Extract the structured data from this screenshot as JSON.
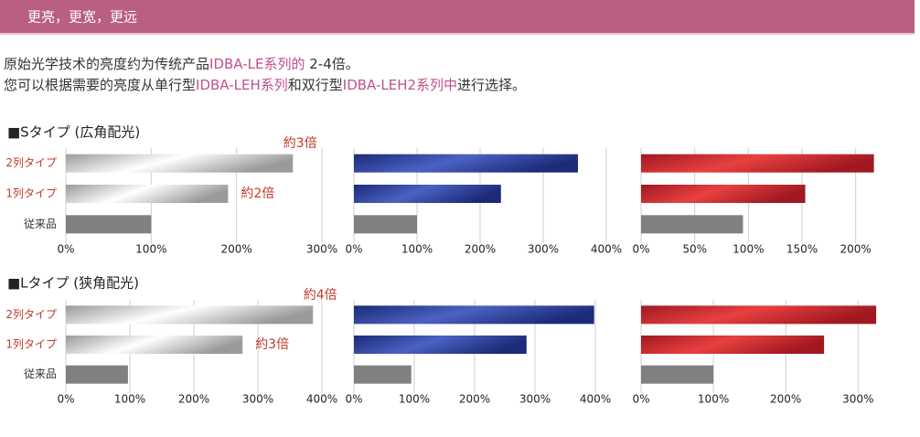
{
  "header": {
    "title": "更亮，更宽，更远"
  },
  "description": {
    "lines": [
      [
        {
          "text": "原始光学技术的亮度约为传统产品",
          "color": "#333333"
        },
        {
          "text": "IDBA-LE系列的",
          "color": "#c0508a"
        },
        {
          "text": " 2-4倍。",
          "color": "#333333"
        }
      ],
      [
        {
          "text": "您可以根据需要的亮度从单行型",
          "color": "#333333"
        },
        {
          "text": "IDBA-LEH系列",
          "color": "#c0508a"
        },
        {
          "text": "和双行型",
          "color": "#333333"
        },
        {
          "text": "IDBA-LEH2系列中",
          "color": "#c0508a"
        },
        {
          "text": "进行选择。",
          "color": "#333333"
        }
      ]
    ]
  },
  "sections": [
    "■Sタイプ (広角配光)",
    "■Lタイプ (狭角配光)"
  ],
  "chart_data": [
    {
      "type": "bar",
      "orientation": "horizontal",
      "categories": [
        "2列タイプ",
        "1列タイプ",
        "従来品"
      ],
      "category_colors": [
        "#c0392b",
        "#c0392b",
        "#333333"
      ],
      "values": [
        266,
        190,
        100
      ],
      "colors": [
        "#9a9a9a",
        "#9a9a9a",
        "#808080"
      ],
      "highlight": "#ffffff",
      "annotations": [
        "約3倍",
        "約2倍"
      ],
      "xlim": [
        0,
        300
      ],
      "xticks": [
        {
          "value": 0,
          "label": "0%"
        },
        {
          "value": 100,
          "label": "100%"
        },
        {
          "value": 200,
          "label": "200%"
        },
        {
          "value": 300,
          "label": "300%"
        }
      ],
      "grid": true
    },
    {
      "type": "bar",
      "orientation": "horizontal",
      "values": [
        355,
        233,
        100
      ],
      "colors": [
        "#1c2a78",
        "#1c2a78",
        "#808080"
      ],
      "highlight": "#4a62c2",
      "xlim": [
        0,
        400
      ],
      "xticks": [
        {
          "value": 0,
          "label": "0%"
        },
        {
          "value": 100,
          "label": "100%"
        },
        {
          "value": 200,
          "label": "200%"
        },
        {
          "value": 300,
          "label": "300%"
        },
        {
          "value": 400,
          "label": "400%"
        }
      ],
      "grid": true
    },
    {
      "type": "bar",
      "orientation": "horizontal",
      "values": [
        217,
        153,
        95
      ],
      "colors": [
        "#a01820",
        "#a01820",
        "#808080"
      ],
      "highlight": "#e84040",
      "xlim": [
        0,
        225
      ],
      "xticks": [
        {
          "value": 0,
          "label": "0%"
        },
        {
          "value": 50,
          "label": "50%"
        },
        {
          "value": 100,
          "label": "100%"
        },
        {
          "value": 150,
          "label": "150%"
        },
        {
          "value": 200,
          "label": "200%"
        }
      ],
      "grid": true
    },
    {
      "type": "bar",
      "orientation": "horizontal",
      "categories": [
        "2列タイプ",
        "1列タイプ",
        "従来品"
      ],
      "category_colors": [
        "#c0392b",
        "#c0392b",
        "#333333"
      ],
      "values": [
        386,
        276,
        97
      ],
      "colors": [
        "#9a9a9a",
        "#9a9a9a",
        "#808080"
      ],
      "highlight": "#ffffff",
      "annotations": [
        "約4倍",
        "約3倍"
      ],
      "xlim": [
        0,
        400
      ],
      "xticks": [
        {
          "value": 0,
          "label": "0%"
        },
        {
          "value": 100,
          "label": "100%"
        },
        {
          "value": 200,
          "label": "200%"
        },
        {
          "value": 300,
          "label": "300%"
        },
        {
          "value": 400,
          "label": "400%"
        }
      ],
      "grid": true
    },
    {
      "type": "bar",
      "orientation": "horizontal",
      "values": [
        398,
        286,
        95
      ],
      "colors": [
        "#1c2a78",
        "#1c2a78",
        "#808080"
      ],
      "highlight": "#4a62c2",
      "xlim": [
        0,
        400
      ],
      "xticks": [
        {
          "value": 0,
          "label": "0%"
        },
        {
          "value": 100,
          "label": "100%"
        },
        {
          "value": 200,
          "label": "200%"
        },
        {
          "value": 300,
          "label": "300%"
        },
        {
          "value": 400,
          "label": "400%"
        }
      ],
      "grid": true
    },
    {
      "type": "bar",
      "orientation": "horizontal",
      "values": [
        325,
        253,
        100
      ],
      "colors": [
        "#a01820",
        "#a01820",
        "#808080"
      ],
      "highlight": "#e84040",
      "xlim": [
        0,
        330
      ],
      "xticks": [
        {
          "value": 0,
          "label": "0%"
        },
        {
          "value": 100,
          "label": "100%"
        },
        {
          "value": 200,
          "label": "200%"
        },
        {
          "value": 300,
          "label": "300%"
        }
      ],
      "grid": true
    }
  ]
}
